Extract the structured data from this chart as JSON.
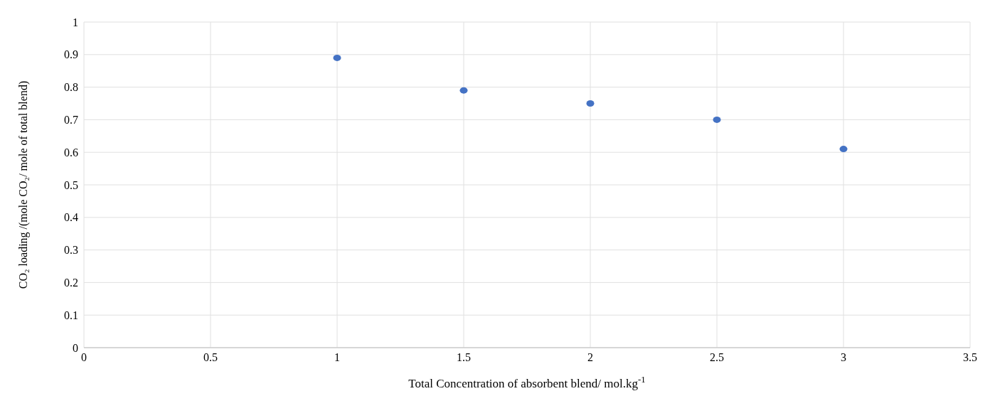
{
  "chart_data": {
    "type": "scatter",
    "xlabel": "Total Concentration of absorbent blend/ mol.kg$^{-1}$",
    "ylabel": "CO₂ loading /(mole CO₂/ mole of total blend)",
    "x": [
      1,
      1.5,
      2,
      2.5,
      3
    ],
    "series": [
      {
        "color": "#4472c4",
        "values": [
          0.89,
          0.79,
          0.75,
          0.7,
          0.61
        ]
      }
    ],
    "xlim": [
      0,
      3.5
    ],
    "xticks": [
      0,
      0.5,
      1,
      1.5,
      2,
      2.5,
      3,
      3.5
    ],
    "ylim": [
      0,
      1
    ],
    "yticks": [
      0,
      0.1,
      0.2,
      0.3,
      0.4,
      0.5,
      0.6,
      0.7,
      0.8,
      0.9,
      1
    ],
    "grid": true,
    "marker": "circle"
  }
}
